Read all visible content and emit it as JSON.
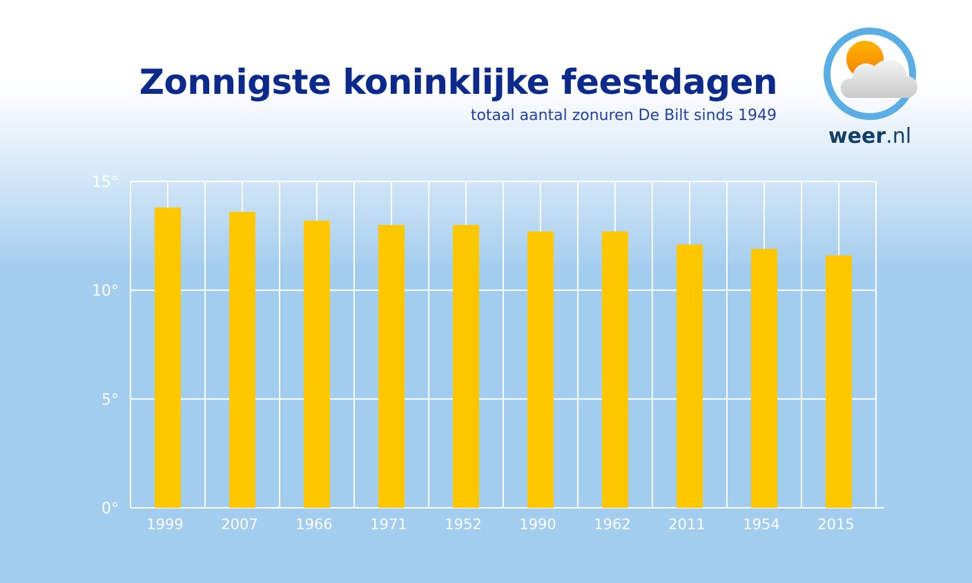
{
  "header": {
    "title": "Zonnigste koninklijke feestdagen",
    "subtitle": "totaal aantal zonuren De Bilt sinds 1949"
  },
  "logo": {
    "brand": "weer",
    "tld": ".nl",
    "icon": "sun-behind-cloud-icon",
    "ring_color": "#5aaee3"
  },
  "colors": {
    "bar": "#ffc700",
    "grid": "#ffffff",
    "title": "#0c2a8c",
    "subtitle": "#2240a8"
  },
  "chart_data": {
    "type": "bar",
    "title": "Zonnigste koninklijke feestdagen",
    "subtitle": "totaal aantal zonuren De Bilt sinds 1949",
    "xlabel": "",
    "ylabel": "",
    "categories": [
      "1999",
      "2007",
      "1966",
      "1971",
      "1952",
      "1990",
      "1962",
      "2011",
      "1954",
      "2015"
    ],
    "values": [
      13.8,
      13.6,
      13.2,
      13.0,
      13.0,
      12.7,
      12.7,
      12.1,
      11.9,
      11.6
    ],
    "ylim": [
      0,
      15
    ],
    "yticks": [
      "0°",
      "5°",
      "10°",
      "15°"
    ],
    "ytick_values": [
      0,
      5,
      10,
      15
    ],
    "grid": true,
    "legend": "none"
  }
}
